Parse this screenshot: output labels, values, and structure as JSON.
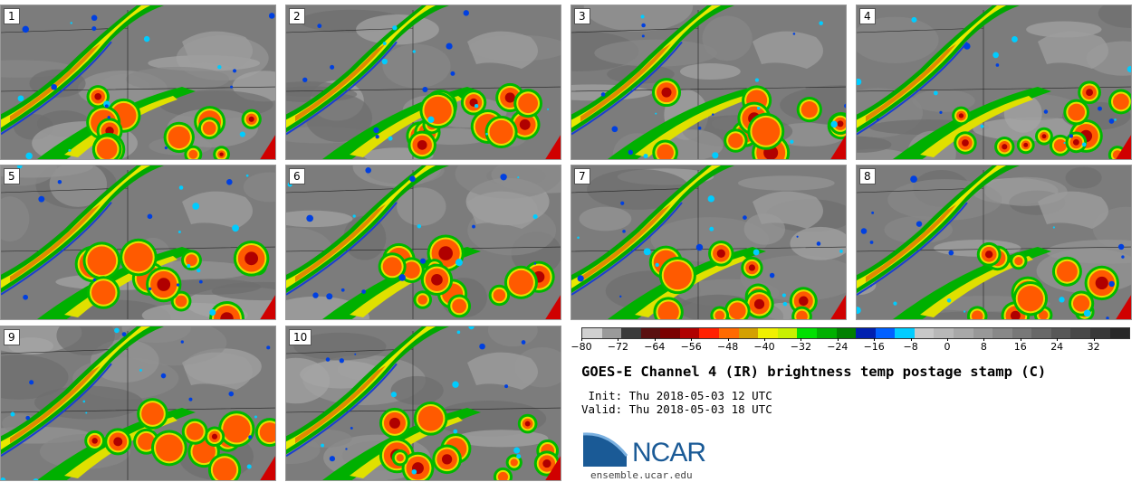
{
  "panels": [
    {
      "label": "1"
    },
    {
      "label": "2"
    },
    {
      "label": "3"
    },
    {
      "label": "4"
    },
    {
      "label": "5"
    },
    {
      "label": "6"
    },
    {
      "label": "7"
    },
    {
      "label": "8"
    },
    {
      "label": "9"
    },
    {
      "label": "10"
    }
  ],
  "colorbar": {
    "colors": [
      "#d0d0d0",
      "#9a9a9a",
      "#3a3a3a",
      "#5a1010",
      "#7a0000",
      "#b00000",
      "#ff2000",
      "#ff6a00",
      "#d4a000",
      "#f0f000",
      "#c8f000",
      "#00e000",
      "#00b000",
      "#008000",
      "#0020b0",
      "#0060ff",
      "#00ccff",
      "#c8c8c8",
      "#b8b8b8",
      "#a8a8a8",
      "#989898",
      "#888888",
      "#787878",
      "#686868",
      "#585858",
      "#484848",
      "#383838",
      "#282828"
    ],
    "ticks": [
      "-80",
      "-72",
      "-64",
      "-56",
      "-48",
      "-40",
      "-32",
      "-24",
      "-16",
      "-8",
      "0",
      "8",
      "16",
      "24",
      "32"
    ],
    "range": [
      -80,
      40
    ]
  },
  "title": "GOES-E Channel 4 (IR) brightness temp postage stamp (C)",
  "init": " Init: Thu 2018-05-03 12 UTC",
  "valid": "Valid: Thu 2018-05-03 18 UTC",
  "logo": {
    "name": "NCAR",
    "url": "ensemble.ucar.edu",
    "brand_color": "#1a5a96"
  }
}
